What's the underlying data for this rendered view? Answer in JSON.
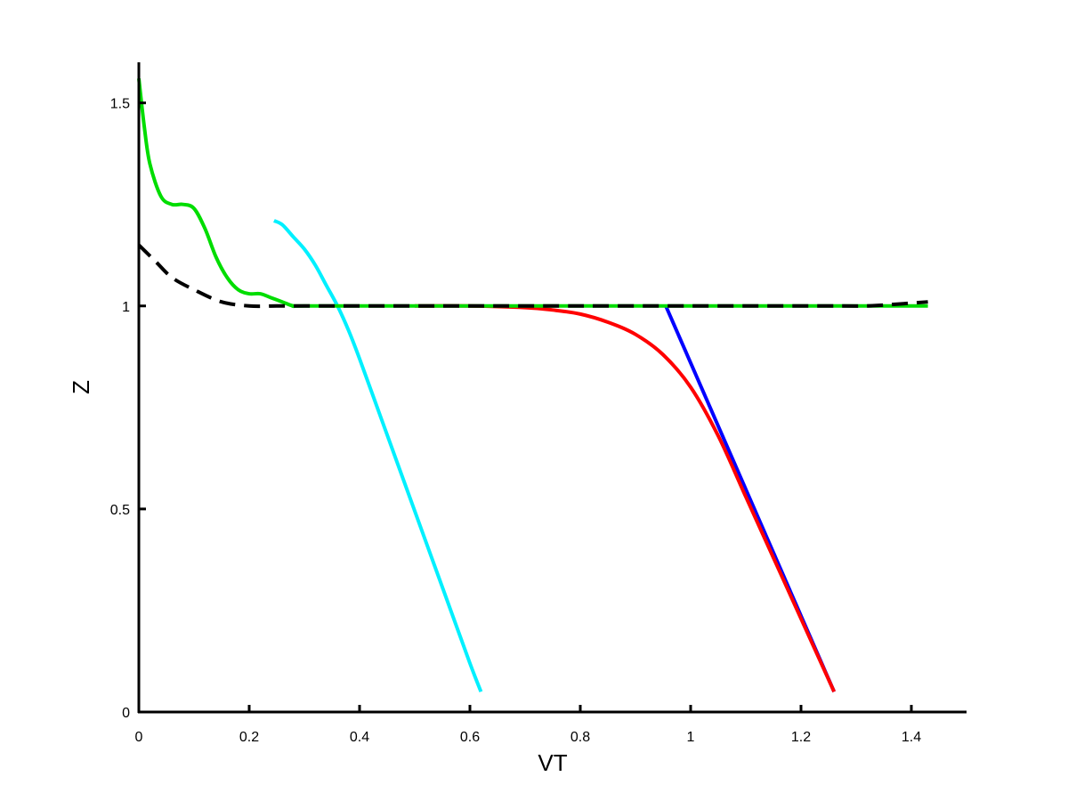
{
  "chart_data": {
    "type": "line",
    "xlabel": "VT",
    "ylabel": "Z",
    "xlim": [
      0,
      1.5
    ],
    "ylim": [
      0,
      1.6
    ],
    "x_ticks": [
      0,
      0.2,
      0.4,
      0.6,
      0.8,
      1,
      1.2,
      1.4
    ],
    "x_tick_labels": [
      "0",
      "0.2",
      "0.4",
      "0.6",
      "0.8",
      "1",
      "1.2",
      "1.4"
    ],
    "y_ticks": [
      0,
      0.5,
      1,
      1.5
    ],
    "y_tick_labels": [
      "0",
      "0.5",
      "1",
      "1.5"
    ],
    "grid": false,
    "legend": false,
    "colors": {
      "axis": "#000000",
      "green": "#00dd00",
      "cyan": "#00f0ff",
      "red": "#ff0000",
      "blue": "#0000ff",
      "black_dashed": "#000000"
    },
    "series": [
      {
        "color": "#00dd00",
        "style": "solid",
        "x": [
          0.0,
          0.01,
          0.02,
          0.04,
          0.06,
          0.08,
          0.1,
          0.12,
          0.14,
          0.16,
          0.18,
          0.2,
          0.22,
          0.24,
          0.26,
          0.28,
          0.3,
          0.5,
          0.8,
          1.1,
          1.3,
          1.43
        ],
        "y": [
          1.56,
          1.44,
          1.35,
          1.27,
          1.25,
          1.25,
          1.24,
          1.19,
          1.12,
          1.07,
          1.04,
          1.03,
          1.03,
          1.02,
          1.01,
          1.0,
          1.0,
          1.0,
          1.0,
          1.0,
          1.0,
          1.0
        ]
      },
      {
        "color": "#000000",
        "style": "dashed",
        "x": [
          0.0,
          0.03,
          0.06,
          0.1,
          0.15,
          0.2,
          0.25,
          0.3,
          0.5,
          0.8,
          1.1,
          1.25,
          1.32,
          1.38,
          1.43
        ],
        "y": [
          1.15,
          1.11,
          1.07,
          1.04,
          1.01,
          1.0,
          1.0,
          1.0,
          1.0,
          1.0,
          1.0,
          1.0,
          1.0,
          1.005,
          1.01
        ]
      },
      {
        "color": "#00f0ff",
        "style": "solid",
        "x": [
          0.245,
          0.26,
          0.28,
          0.3,
          0.32,
          0.34,
          0.36,
          0.38,
          0.4,
          0.44,
          0.48,
          0.52,
          0.56,
          0.6,
          0.62
        ],
        "y": [
          1.21,
          1.2,
          1.17,
          1.14,
          1.1,
          1.05,
          1.0,
          0.94,
          0.87,
          0.72,
          0.57,
          0.42,
          0.27,
          0.12,
          0.05
        ]
      },
      {
        "color": "#ff0000",
        "style": "solid",
        "x": [
          0.5,
          0.6,
          0.7,
          0.75,
          0.8,
          0.85,
          0.9,
          0.95,
          1.0,
          1.05,
          1.1,
          1.15,
          1.2,
          1.25,
          1.26
        ],
        "y": [
          1.0,
          1.0,
          0.996,
          0.99,
          0.98,
          0.96,
          0.93,
          0.88,
          0.8,
          0.68,
          0.53,
          0.38,
          0.23,
          0.08,
          0.05
        ]
      },
      {
        "color": "#0000ff",
        "style": "solid",
        "x": [
          0.955,
          1.26
        ],
        "y": [
          1.0,
          0.05
        ]
      }
    ]
  }
}
